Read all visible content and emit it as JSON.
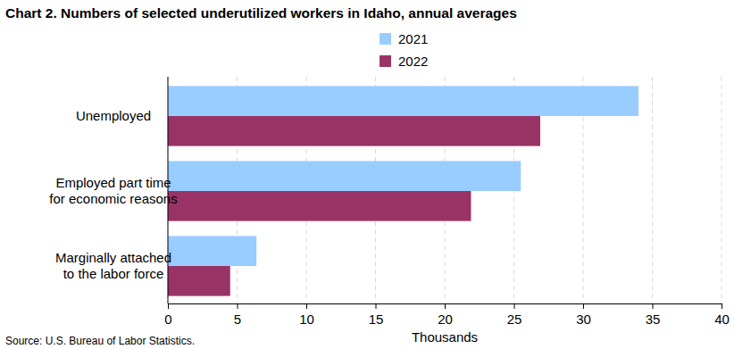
{
  "chart_data": {
    "type": "bar",
    "orientation": "horizontal",
    "title": "Chart 2. Numbers of selected underutilized workers in Idaho, annual averages",
    "categories": [
      "Unemployed",
      "Employed part time\nfor economic reasons",
      "Marginally attached\nto the labor force"
    ],
    "series": [
      {
        "name": "2021",
        "color": "#99ccff",
        "values": [
          34.0,
          25.5,
          6.4
        ]
      },
      {
        "name": "2022",
        "color": "#993366",
        "values": [
          26.9,
          21.9,
          4.5
        ]
      }
    ],
    "xlabel": "Thousands",
    "xlim": [
      0,
      40
    ],
    "xticks": [
      0,
      5,
      10,
      15,
      20,
      25,
      30,
      35,
      40
    ],
    "grid": true,
    "legend": "top",
    "source": "Source: U.S. Bureau of Labor Statistics."
  }
}
